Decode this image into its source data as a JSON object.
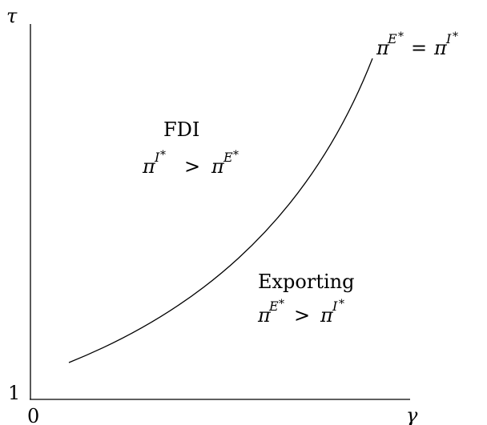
{
  "axes": {
    "y_label": "τ",
    "x_label": "γ",
    "origin_label": "0",
    "y_min_label": "1"
  },
  "curve": {
    "pi": "π",
    "sup_E": "E",
    "sup_I": "I",
    "star": "*",
    "relation": "="
  },
  "regions": {
    "fdi": {
      "title": "FDI",
      "pi": "π",
      "sup_left": "I",
      "sup_right": "E",
      "star": "*",
      "relation": ">"
    },
    "exporting": {
      "title": "Exporting",
      "pi": "π",
      "sup_left": "E",
      "sup_right": "I",
      "star": "*",
      "relation": ">"
    }
  },
  "colors": {
    "ink": "#000000",
    "background": "#ffffff"
  }
}
